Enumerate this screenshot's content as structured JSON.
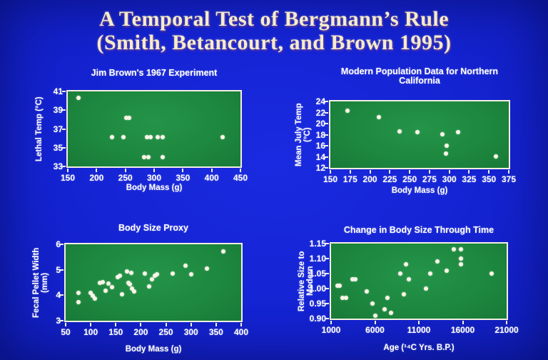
{
  "slide": {
    "title_line1": "A Temporal Test of Bergmann’s Rule",
    "title_line2": "(Smith, Betancourt, and Brown 1995)"
  },
  "colors": {
    "background_blue": "#1423d2",
    "title_text": "#f5ecca",
    "chart_text": "#ffffff",
    "plot_background_green": "#1d883f",
    "plot_border": "#f2efe0",
    "data_point": "#f9f5e8"
  },
  "chart_data": [
    {
      "type": "scatter",
      "title": "Jim Brown's 1967 Experiment",
      "xlabel": "Body Mass (g)",
      "ylabel": "Lethal Temp (°C)",
      "xlim": [
        150,
        450
      ],
      "ylim": [
        33,
        41
      ],
      "x_tick_values": [
        150,
        200,
        250,
        300,
        350,
        400,
        450
      ],
      "x_tick_labels": [
        "150",
        "200",
        "250",
        "300",
        "350",
        "400",
        "450"
      ],
      "y_tick_values": [
        33,
        35,
        37,
        39,
        41
      ],
      "y_tick_labels": [
        "33",
        "35",
        "37",
        "39",
        "41"
      ],
      "grid": false,
      "points": [
        [
          169,
          40.3
        ],
        [
          252,
          38.2
        ],
        [
          257,
          38.2
        ],
        [
          227,
          36.1
        ],
        [
          247,
          36.1
        ],
        [
          288,
          36.1
        ],
        [
          294,
          36.1
        ],
        [
          306,
          36.1
        ],
        [
          315,
          36.1
        ],
        [
          419,
          36.1
        ],
        [
          283,
          34.0
        ],
        [
          290,
          34.0
        ],
        [
          315,
          34.0
        ]
      ]
    },
    {
      "type": "scatter",
      "title": "Modern Population Data for Northern California",
      "xlabel": "Body Mass (g)",
      "ylabel": "Mean July Temp (°C)",
      "xlim": [
        150,
        375
      ],
      "ylim": [
        12,
        24
      ],
      "x_tick_values": [
        150,
        175,
        200,
        225,
        250,
        275,
        300,
        325,
        350,
        375
      ],
      "x_tick_labels": [
        "150",
        "175",
        "200",
        "225",
        "250",
        "275",
        "300",
        "325",
        "350",
        "375"
      ],
      "y_tick_values": [
        12,
        14,
        16,
        18,
        20,
        22,
        24
      ],
      "y_tick_labels": [
        "12",
        "14",
        "16",
        "18",
        "20",
        "22",
        "24"
      ],
      "grid": false,
      "points": [
        [
          172,
          22.3
        ],
        [
          211,
          21.1
        ],
        [
          237,
          18.6
        ],
        [
          260,
          18.4
        ],
        [
          291,
          18.1
        ],
        [
          311,
          18.4
        ],
        [
          297,
          16.0
        ],
        [
          296,
          14.6
        ],
        [
          359,
          14.1
        ]
      ]
    },
    {
      "type": "scatter",
      "title": "Body Size Proxy",
      "xlabel": "Body Mass (g)",
      "ylabel": "Fecal Pellet Width (mm)",
      "xlim": [
        50,
        400
      ],
      "ylim": [
        3,
        6
      ],
      "x_tick_values": [
        50,
        100,
        150,
        200,
        250,
        300,
        350,
        400
      ],
      "x_tick_labels": [
        "50",
        "100",
        "150",
        "200",
        "250",
        "300",
        "350",
        "400"
      ],
      "y_tick_values": [
        3,
        4,
        5,
        6
      ],
      "y_tick_labels": [
        "3",
        "4",
        "5",
        "6"
      ],
      "grid": false,
      "points": [
        [
          76,
          4.1
        ],
        [
          76,
          3.72
        ],
        [
          100,
          4.1
        ],
        [
          104,
          3.98
        ],
        [
          108,
          3.87
        ],
        [
          119,
          4.5
        ],
        [
          124,
          4.52
        ],
        [
          129,
          4.18
        ],
        [
          136,
          4.45
        ],
        [
          143,
          4.33
        ],
        [
          154,
          4.7
        ],
        [
          158,
          4.77
        ],
        [
          163,
          4.05
        ],
        [
          172,
          4.93
        ],
        [
          175,
          4.5
        ],
        [
          178,
          4.44
        ],
        [
          181,
          4.88
        ],
        [
          183,
          4.25
        ],
        [
          186,
          4.15
        ],
        [
          208,
          4.85
        ],
        [
          216,
          4.34
        ],
        [
          222,
          4.64
        ],
        [
          228,
          4.76
        ],
        [
          232,
          4.83
        ],
        [
          264,
          4.85
        ],
        [
          289,
          5.15
        ],
        [
          301,
          4.83
        ],
        [
          332,
          5.04
        ],
        [
          365,
          5.72
        ]
      ]
    },
    {
      "type": "scatter",
      "title": "Change in Body Size Through Time",
      "xlabel": "Age (¹⁴C Yrs. B.P.)",
      "ylabel": "Relative Size to Modern",
      "xlim": [
        1000,
        21000
      ],
      "ylim": [
        0.9,
        1.15
      ],
      "x_tick_values": [
        1000,
        6000,
        11000,
        16000,
        21000
      ],
      "x_tick_labels": [
        "1000",
        "6000",
        "11000",
        "16000",
        "21000"
      ],
      "y_tick_values": [
        0.9,
        0.95,
        1.0,
        1.05,
        1.1,
        1.15
      ],
      "y_tick_labels": [
        "0.90",
        "0.95",
        "1.00",
        "1.05",
        "1.10",
        "1.15"
      ],
      "grid": false,
      "points": [
        [
          1700,
          1.01
        ],
        [
          1950,
          1.01
        ],
        [
          2300,
          0.97
        ],
        [
          2700,
          0.97
        ],
        [
          3400,
          1.03
        ],
        [
          3800,
          1.03
        ],
        [
          5100,
          0.99
        ],
        [
          5700,
          0.95
        ],
        [
          6000,
          0.91
        ],
        [
          7100,
          0.93
        ],
        [
          7400,
          0.97
        ],
        [
          7800,
          0.92
        ],
        [
          8900,
          1.05
        ],
        [
          9300,
          0.98
        ],
        [
          9500,
          1.08
        ],
        [
          9900,
          1.03
        ],
        [
          11800,
          1.0
        ],
        [
          12300,
          1.05
        ],
        [
          13100,
          1.09
        ],
        [
          14200,
          1.06
        ],
        [
          14950,
          1.13
        ],
        [
          15800,
          1.13
        ],
        [
          15800,
          1.1
        ],
        [
          15800,
          1.08
        ],
        [
          19300,
          1.05
        ]
      ]
    }
  ]
}
